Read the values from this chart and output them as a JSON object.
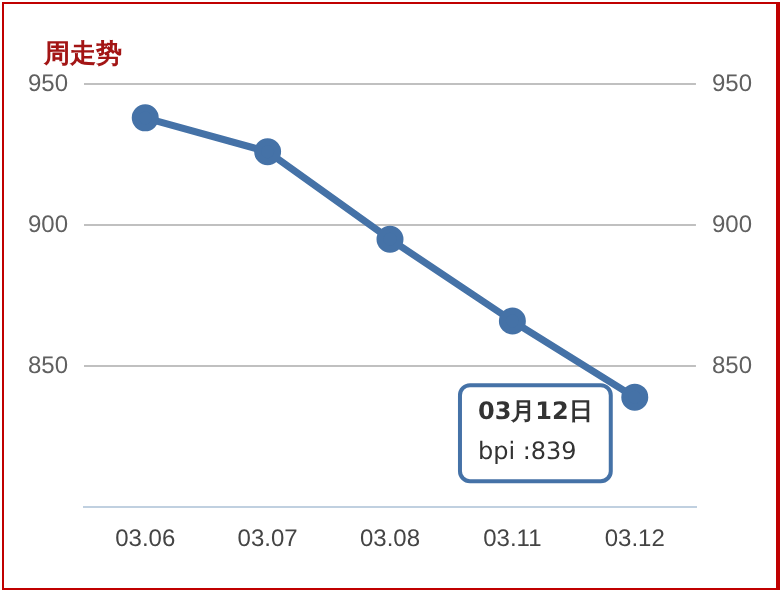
{
  "chart_data": {
    "type": "line",
    "title": "周走势",
    "categories": [
      "03.06",
      "03.07",
      "03.08",
      "03.11",
      "03.12"
    ],
    "series": [
      {
        "color": "#4572a7",
        "values": [
          938,
          926,
          895,
          866,
          839
        ]
      }
    ],
    "ylim": [
      800,
      950
    ],
    "yticks": [
      {
        "value": 800,
        "label": null
      },
      850,
      900,
      950
    ],
    "y2lim": [
      800,
      950
    ],
    "y2ticks": [
      850,
      900,
      950
    ],
    "grid": "y",
    "legend": false,
    "marker": "circle",
    "line_style": "solid",
    "annotations": [
      {
        "text": "03月12日\nbpi :839",
        "x": "03.12",
        "y": 839
      }
    ]
  }
}
